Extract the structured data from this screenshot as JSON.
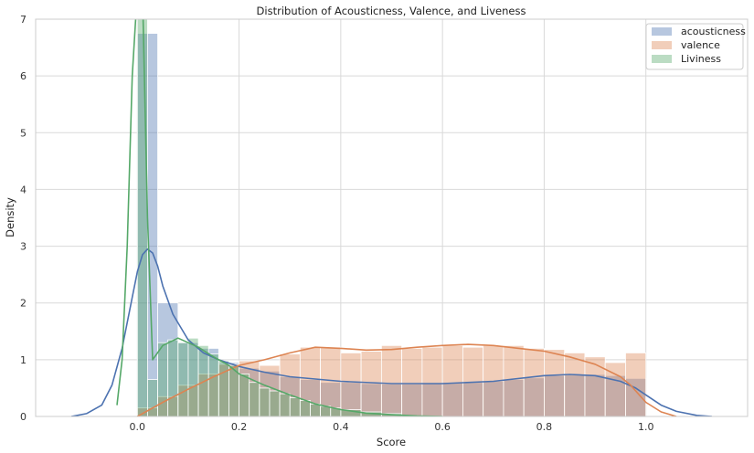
{
  "chart_data": {
    "type": "histogram-kde",
    "title": "Distribution of Acousticness, Valence, and Liveness",
    "xlabel": "Score",
    "ylabel": "Density",
    "xlim": [
      -0.2,
      1.2
    ],
    "ylim": [
      0,
      7
    ],
    "xticks": [
      0.0,
      0.2,
      0.4,
      0.6,
      0.8,
      1.0
    ],
    "xtick_labels": [
      "0.0",
      "0.2",
      "0.4",
      "0.6",
      "0.8",
      "1.0"
    ],
    "yticks": [
      0,
      1,
      2,
      3,
      4,
      5,
      6,
      7
    ],
    "ytick_labels": [
      "0",
      "1",
      "2",
      "3",
      "4",
      "5",
      "6",
      "7"
    ],
    "grid": true,
    "legend_position": "top-right",
    "series": [
      {
        "name": "acousticness",
        "color": "#4c72b0",
        "bin_edges": [
          0.0,
          0.04,
          0.08,
          0.12,
          0.16,
          0.2,
          0.24,
          0.28,
          0.32,
          0.36,
          0.4,
          0.44,
          0.48,
          0.52,
          0.56,
          0.6,
          0.64,
          0.68,
          0.72,
          0.76,
          0.8,
          0.84,
          0.88,
          0.92,
          0.96,
          1.0
        ],
        "bin_values": [
          6.75,
          2.0,
          1.3,
          1.2,
          0.95,
          0.85,
          0.8,
          0.7,
          0.65,
          0.6,
          0.6,
          0.58,
          0.57,
          0.57,
          0.58,
          0.6,
          0.6,
          0.62,
          0.65,
          0.68,
          0.72,
          0.73,
          0.74,
          0.72,
          0.67
        ],
        "kde_x": [
          -0.13,
          -0.1,
          -0.07,
          -0.05,
          -0.03,
          -0.01,
          0.0,
          0.01,
          0.02,
          0.03,
          0.04,
          0.05,
          0.07,
          0.1,
          0.13,
          0.16,
          0.2,
          0.25,
          0.3,
          0.35,
          0.4,
          0.5,
          0.6,
          0.7,
          0.8,
          0.85,
          0.9,
          0.95,
          0.98,
          1.0,
          1.03,
          1.06,
          1.1,
          1.13
        ],
        "kde_y": [
          0.0,
          0.05,
          0.2,
          0.55,
          1.2,
          2.1,
          2.55,
          2.85,
          2.95,
          2.88,
          2.65,
          2.3,
          1.8,
          1.35,
          1.12,
          1.0,
          0.88,
          0.78,
          0.7,
          0.66,
          0.62,
          0.58,
          0.58,
          0.62,
          0.72,
          0.74,
          0.72,
          0.62,
          0.5,
          0.38,
          0.2,
          0.09,
          0.02,
          0.0
        ]
      },
      {
        "name": "valence",
        "color": "#dd8452",
        "bin_edges": [
          0.0,
          0.04,
          0.08,
          0.12,
          0.16,
          0.2,
          0.24,
          0.28,
          0.32,
          0.36,
          0.4,
          0.44,
          0.48,
          0.52,
          0.56,
          0.6,
          0.64,
          0.68,
          0.72,
          0.76,
          0.8,
          0.84,
          0.88,
          0.92,
          0.96,
          1.0
        ],
        "bin_values": [
          0.15,
          0.35,
          0.55,
          0.75,
          0.92,
          0.98,
          0.9,
          1.1,
          1.22,
          1.22,
          1.12,
          1.15,
          1.25,
          1.2,
          1.22,
          1.25,
          1.22,
          1.25,
          1.25,
          1.2,
          1.18,
          1.12,
          1.05,
          0.95,
          1.12
        ],
        "kde_x": [
          0.0,
          0.05,
          0.1,
          0.15,
          0.2,
          0.25,
          0.3,
          0.35,
          0.4,
          0.45,
          0.5,
          0.55,
          0.6,
          0.65,
          0.7,
          0.75,
          0.8,
          0.85,
          0.9,
          0.95,
          0.97,
          1.0,
          1.03,
          1.06
        ],
        "kde_y": [
          0.0,
          0.25,
          0.48,
          0.7,
          0.9,
          1.0,
          1.12,
          1.22,
          1.2,
          1.17,
          1.18,
          1.22,
          1.25,
          1.27,
          1.25,
          1.2,
          1.15,
          1.05,
          0.92,
          0.7,
          0.55,
          0.25,
          0.08,
          0.0
        ]
      },
      {
        "name": "Liviness",
        "color": "#55a868",
        "bin_edges": [
          0.0,
          0.02,
          0.04,
          0.06,
          0.08,
          0.1,
          0.12,
          0.14,
          0.16,
          0.18,
          0.2,
          0.22,
          0.24,
          0.26,
          0.28,
          0.3,
          0.32,
          0.34,
          0.36,
          0.38,
          0.4,
          0.44,
          0.48,
          0.52
        ],
        "bin_values": [
          7.0,
          0.65,
          1.3,
          1.35,
          1.3,
          1.38,
          1.25,
          1.1,
          0.98,
          0.9,
          0.75,
          0.6,
          0.5,
          0.45,
          0.4,
          0.33,
          0.28,
          0.22,
          0.18,
          0.15,
          0.12,
          0.08,
          0.05
        ],
        "kde_x": [
          -0.04,
          -0.03,
          -0.02,
          -0.01,
          0.0,
          0.005,
          0.01,
          0.02,
          0.03,
          0.05,
          0.08,
          0.1,
          0.12,
          0.15,
          0.18,
          0.2,
          0.25,
          0.3,
          0.35,
          0.4,
          0.45,
          0.5,
          0.55,
          0.6
        ],
        "kde_y": [
          0.2,
          1.0,
          3.0,
          6.0,
          7.5,
          7.5,
          7.5,
          3.5,
          1.0,
          1.25,
          1.38,
          1.3,
          1.22,
          1.05,
          0.9,
          0.75,
          0.55,
          0.38,
          0.22,
          0.12,
          0.06,
          0.03,
          0.01,
          0.0
        ]
      }
    ]
  }
}
